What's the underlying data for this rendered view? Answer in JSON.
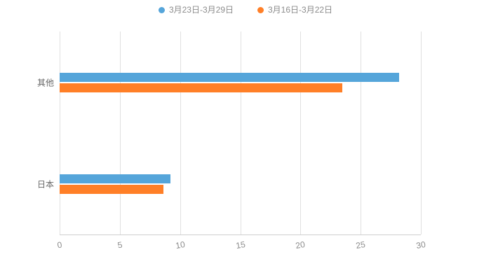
{
  "chart_data": {
    "type": "bar",
    "orientation": "horizontal",
    "title": "",
    "xlabel": "",
    "ylabel": "",
    "categories": [
      "其他",
      "日本"
    ],
    "series": [
      {
        "name": "3月23日-3月29日",
        "color": "#55A5DA",
        "values": [
          28.2,
          9.2
        ]
      },
      {
        "name": "3月16日-3月22日",
        "color": "#FF7F27",
        "values": [
          23.5,
          8.6
        ]
      }
    ],
    "xlim": [
      0,
      30
    ],
    "xticks": [
      0,
      5,
      10,
      15,
      20,
      25,
      30
    ],
    "grid": true,
    "gridline_color": "#e0e0e0",
    "legend_position": "top"
  }
}
